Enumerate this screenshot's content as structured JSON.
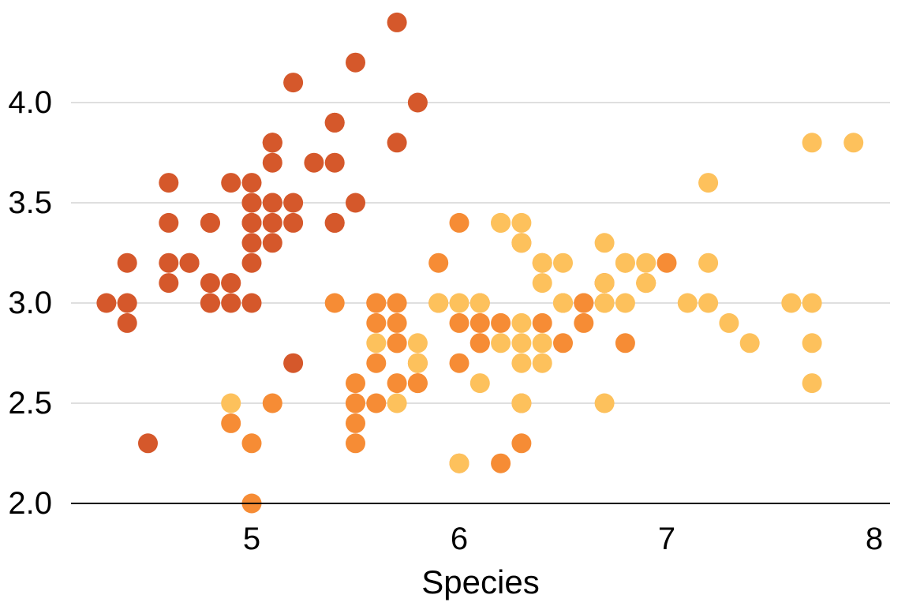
{
  "chart_data": {
    "type": "scatter",
    "title": "",
    "xlabel": "Species",
    "ylabel": "",
    "xlim": [
      4.15,
      8.1
    ],
    "ylim": [
      2.0,
      4.45
    ],
    "x_ticks": [
      5,
      6,
      7,
      8
    ],
    "y_ticks": [
      2.0,
      2.5,
      3.0,
      3.5,
      4.0
    ],
    "x_tick_labels": [
      "5",
      "6",
      "7",
      "8"
    ],
    "y_tick_labels": [
      "2.0",
      "2.5",
      "3.0",
      "3.5",
      "4.0"
    ],
    "grid": "horizontal",
    "legend": "none",
    "series": [
      {
        "color": "#d5582b",
        "points": [
          [
            5.1,
            3.5
          ],
          [
            4.9,
            3.0
          ],
          [
            4.7,
            3.2
          ],
          [
            4.6,
            3.1
          ],
          [
            5.0,
            3.6
          ],
          [
            5.4,
            3.9
          ],
          [
            4.6,
            3.4
          ],
          [
            5.0,
            3.4
          ],
          [
            4.4,
            2.9
          ],
          [
            4.9,
            3.1
          ],
          [
            5.4,
            3.7
          ],
          [
            4.8,
            3.4
          ],
          [
            4.8,
            3.0
          ],
          [
            4.3,
            3.0
          ],
          [
            5.8,
            4.0
          ],
          [
            5.7,
            4.4
          ],
          [
            5.4,
            3.9
          ],
          [
            5.1,
            3.5
          ],
          [
            5.7,
            3.8
          ],
          [
            5.1,
            3.8
          ],
          [
            5.4,
            3.4
          ],
          [
            5.1,
            3.7
          ],
          [
            4.6,
            3.6
          ],
          [
            5.1,
            3.3
          ],
          [
            4.8,
            3.4
          ],
          [
            5.0,
            3.0
          ],
          [
            5.0,
            3.4
          ],
          [
            5.2,
            3.5
          ],
          [
            5.2,
            3.4
          ],
          [
            4.7,
            3.2
          ],
          [
            4.8,
            3.1
          ],
          [
            5.4,
            3.4
          ],
          [
            5.2,
            4.1
          ],
          [
            5.5,
            4.2
          ],
          [
            4.9,
            3.1
          ],
          [
            5.0,
            3.2
          ],
          [
            5.5,
            3.5
          ],
          [
            4.9,
            3.6
          ],
          [
            4.4,
            3.0
          ],
          [
            5.1,
            3.4
          ],
          [
            5.0,
            3.5
          ],
          [
            4.5,
            2.3
          ],
          [
            4.4,
            3.2
          ],
          [
            5.0,
            3.5
          ],
          [
            5.1,
            3.8
          ],
          [
            4.8,
            3.0
          ],
          [
            5.1,
            3.8
          ],
          [
            4.6,
            3.2
          ],
          [
            5.3,
            3.7
          ],
          [
            5.0,
            3.3
          ],
          [
            5.2,
            2.7
          ]
        ]
      },
      {
        "color": "#f68c35",
        "points": [
          [
            7.0,
            3.2
          ],
          [
            6.4,
            3.2
          ],
          [
            6.9,
            3.1
          ],
          [
            5.5,
            2.3
          ],
          [
            6.5,
            2.8
          ],
          [
            5.7,
            2.8
          ],
          [
            6.3,
            3.3
          ],
          [
            4.9,
            2.4
          ],
          [
            6.6,
            2.9
          ],
          [
            5.0,
            2.0
          ],
          [
            5.9,
            3.0
          ],
          [
            6.0,
            2.2
          ],
          [
            6.1,
            2.9
          ],
          [
            5.6,
            2.9
          ],
          [
            6.7,
            3.1
          ],
          [
            5.6,
            3.0
          ],
          [
            5.8,
            2.7
          ],
          [
            6.2,
            2.2
          ],
          [
            5.6,
            2.5
          ],
          [
            5.9,
            3.2
          ],
          [
            6.1,
            2.8
          ],
          [
            6.3,
            2.5
          ],
          [
            6.4,
            2.9
          ],
          [
            6.6,
            3.0
          ],
          [
            6.8,
            2.8
          ],
          [
            6.0,
            2.9
          ],
          [
            5.7,
            2.6
          ],
          [
            5.5,
            2.4
          ],
          [
            5.8,
            2.7
          ],
          [
            6.0,
            2.7
          ],
          [
            5.4,
            3.0
          ],
          [
            6.0,
            3.4
          ],
          [
            6.7,
            3.1
          ],
          [
            6.3,
            2.3
          ],
          [
            5.6,
            3.0
          ],
          [
            5.5,
            2.5
          ],
          [
            5.5,
            2.6
          ],
          [
            6.1,
            3.0
          ],
          [
            5.8,
            2.6
          ],
          [
            5.0,
            2.3
          ],
          [
            5.6,
            2.7
          ],
          [
            5.7,
            3.0
          ],
          [
            5.7,
            2.9
          ],
          [
            6.2,
            2.9
          ],
          [
            5.1,
            2.5
          ],
          [
            5.7,
            2.8
          ],
          [
            5.8,
            2.6
          ],
          [
            6.1,
            2.8
          ],
          [
            5.5,
            2.5
          ],
          [
            6.6,
            3.0
          ]
        ]
      },
      {
        "color": "#fdc15c",
        "points": [
          [
            6.3,
            3.3
          ],
          [
            5.8,
            2.7
          ],
          [
            7.1,
            3.0
          ],
          [
            6.3,
            2.9
          ],
          [
            6.5,
            3.0
          ],
          [
            7.6,
            3.0
          ],
          [
            4.9,
            2.5
          ],
          [
            7.3,
            2.9
          ],
          [
            6.7,
            2.5
          ],
          [
            7.2,
            3.6
          ],
          [
            6.5,
            3.2
          ],
          [
            6.4,
            2.7
          ],
          [
            6.8,
            3.0
          ],
          [
            5.7,
            2.5
          ],
          [
            5.8,
            2.8
          ],
          [
            6.4,
            3.2
          ],
          [
            7.7,
            3.8
          ],
          [
            7.7,
            2.6
          ],
          [
            6.0,
            2.2
          ],
          [
            6.9,
            3.2
          ],
          [
            5.6,
            2.8
          ],
          [
            7.7,
            2.8
          ],
          [
            6.3,
            2.7
          ],
          [
            6.7,
            3.3
          ],
          [
            7.2,
            3.2
          ],
          [
            6.2,
            2.8
          ],
          [
            6.1,
            3.0
          ],
          [
            6.4,
            2.8
          ],
          [
            7.2,
            3.0
          ],
          [
            7.4,
            2.8
          ],
          [
            7.9,
            3.8
          ],
          [
            6.3,
            2.8
          ],
          [
            6.1,
            2.6
          ],
          [
            7.7,
            3.0
          ],
          [
            6.3,
            3.4
          ],
          [
            6.4,
            3.1
          ],
          [
            6.0,
            3.0
          ],
          [
            6.9,
            3.1
          ],
          [
            6.7,
            3.1
          ],
          [
            6.8,
            3.2
          ],
          [
            6.7,
            3.0
          ],
          [
            6.5,
            3.0
          ],
          [
            6.2,
            3.4
          ],
          [
            5.9,
            3.0
          ],
          [
            6.9,
            3.1
          ],
          [
            6.3,
            2.5
          ],
          [
            6.5,
            3.0
          ],
          [
            6.2,
            3.4
          ],
          [
            6.7,
            3.0
          ],
          [
            6.8,
            3.2
          ]
        ]
      }
    ]
  }
}
